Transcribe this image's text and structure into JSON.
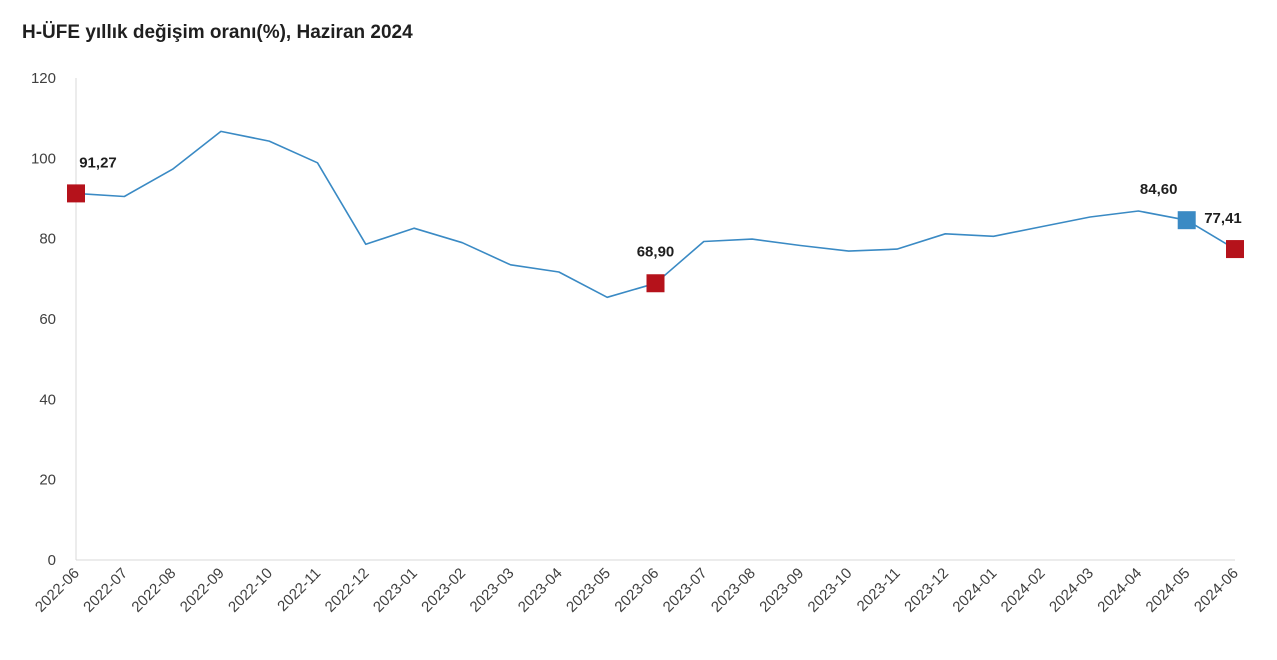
{
  "chart_data": {
    "type": "line",
    "title": "H-ÜFE yıllık değişim oranı(%), Haziran 2024",
    "xlabel": "",
    "ylabel": "",
    "ylim": [
      0,
      120
    ],
    "yticks": [
      "0",
      "20",
      "40",
      "60",
      "80",
      "100",
      "120"
    ],
    "grid": false,
    "legend": "none",
    "categories": [
      "2022-06",
      "2022-07",
      "2022-08",
      "2022-09",
      "2022-10",
      "2022-11",
      "2022-12",
      "2023-01",
      "2023-02",
      "2023-03",
      "2023-04",
      "2023-05",
      "2023-06",
      "2023-07",
      "2023-08",
      "2023-09",
      "2023-10",
      "2023-11",
      "2023-12",
      "2024-01",
      "2024-02",
      "2024-03",
      "2024-04",
      "2024-05",
      "2024-06"
    ],
    "series": [
      {
        "values": [
          91.27,
          90.5,
          97.3,
          106.7,
          104.3,
          98.9,
          78.6,
          82.6,
          79.0,
          73.5,
          71.7,
          65.4,
          68.9,
          79.3,
          79.9,
          78.3,
          76.9,
          77.4,
          81.2,
          80.6,
          83.0,
          85.4,
          86.9,
          84.6,
          77.41
        ],
        "color": "#3a8ac4"
      }
    ],
    "highlights": [
      {
        "category": "2022-06",
        "value": 91.27,
        "label": "91,27",
        "color": "#b5121b"
      },
      {
        "category": "2023-06",
        "value": 68.9,
        "label": "68,90",
        "color": "#b5121b"
      },
      {
        "category": "2024-05",
        "value": 84.6,
        "label": "84,60",
        "color": "#3a8ac4"
      },
      {
        "category": "2024-06",
        "value": 77.41,
        "label": "77,41",
        "color": "#b5121b"
      }
    ]
  }
}
